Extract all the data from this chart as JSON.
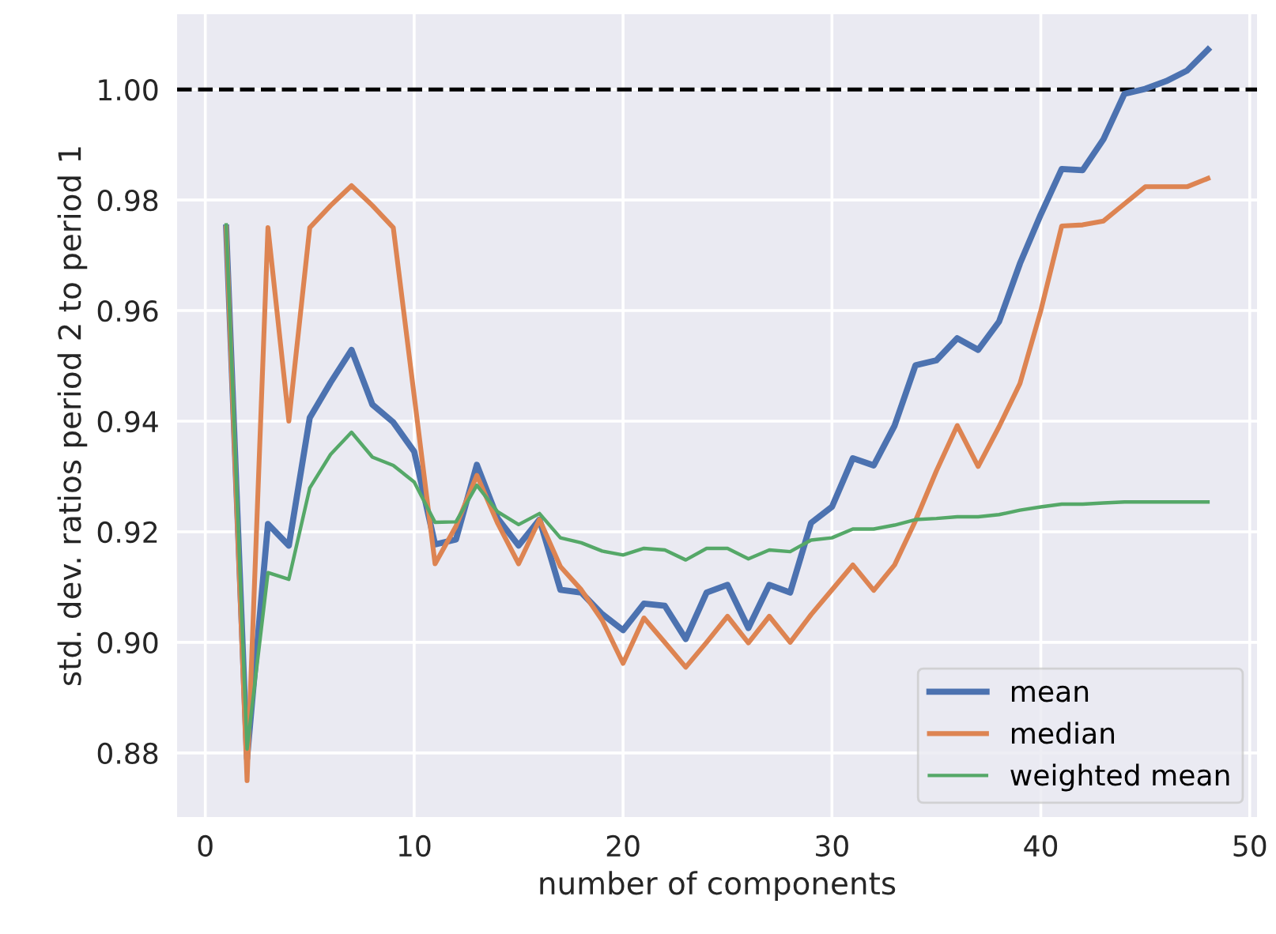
{
  "chart_data": {
    "type": "line",
    "xlabel": "number of components",
    "ylabel": "std. dev. ratios period 2 to period 1",
    "x": [
      1,
      2,
      3,
      4,
      5,
      6,
      7,
      8,
      9,
      10,
      11,
      12,
      13,
      14,
      15,
      16,
      17,
      18,
      19,
      20,
      21,
      22,
      23,
      24,
      25,
      26,
      27,
      28,
      29,
      30,
      31,
      32,
      33,
      34,
      35,
      36,
      37,
      38,
      39,
      40,
      41,
      42,
      43,
      44,
      45,
      46,
      47,
      48
    ],
    "series": [
      {
        "name": "mean",
        "color": "#4c72b0",
        "values": [
          0.975,
          0.879,
          0.9214,
          0.9175,
          0.9406,
          0.947,
          0.9529,
          0.943,
          0.9398,
          0.9345,
          0.9177,
          0.9186,
          0.9321,
          0.9224,
          0.9175,
          0.9222,
          0.9095,
          0.909,
          0.9051,
          0.9022,
          0.907,
          0.9066,
          0.9006,
          0.909,
          0.9104,
          0.9026,
          0.9104,
          0.909,
          0.9216,
          0.9245,
          0.9333,
          0.932,
          0.9392,
          0.9501,
          0.951,
          0.955,
          0.9529,
          0.958,
          0.9685,
          0.9774,
          0.9856,
          0.9854,
          0.991,
          0.9992,
          1.0001,
          1.0015,
          1.0034,
          1.0072
        ]
      },
      {
        "name": "median",
        "color": "#dd8452",
        "values": [
          0.975,
          0.875,
          0.975,
          0.94,
          0.975,
          0.979,
          0.9826,
          0.979,
          0.975,
          0.9446,
          0.9142,
          0.921,
          0.9302,
          0.9215,
          0.9142,
          0.9222,
          0.9137,
          0.9095,
          0.904,
          0.8962,
          0.9044,
          0.9,
          0.8955,
          0.9,
          0.9047,
          0.8999,
          0.9047,
          0.9,
          0.905,
          0.9095,
          0.914,
          0.9094,
          0.914,
          0.922,
          0.931,
          0.9392,
          0.9318,
          0.939,
          0.9468,
          0.96,
          0.9753,
          0.9755,
          0.9762,
          0.9793,
          0.9824,
          0.9824,
          0.9824,
          0.9839
        ]
      },
      {
        "name": "weighted mean",
        "color": "#55a868",
        "values": [
          0.9755,
          0.8807,
          0.9126,
          0.9114,
          0.9279,
          0.934,
          0.938,
          0.9335,
          0.932,
          0.929,
          0.9217,
          0.9218,
          0.9284,
          0.9236,
          0.9213,
          0.9233,
          0.9189,
          0.918,
          0.9165,
          0.9158,
          0.917,
          0.9167,
          0.9149,
          0.917,
          0.917,
          0.9151,
          0.9167,
          0.9164,
          0.9185,
          0.9189,
          0.9205,
          0.9205,
          0.9212,
          0.9222,
          0.9224,
          0.9227,
          0.9227,
          0.9231,
          0.9239,
          0.9245,
          0.925,
          0.925,
          0.9252,
          0.9254,
          0.9254,
          0.9254,
          0.9254,
          0.9254
        ]
      }
    ],
    "xlim": [
      -1.35,
      50.35
    ],
    "xticks": [
      0,
      10,
      20,
      30,
      40,
      50
    ],
    "ylim": [
      0.8684,
      1.0136
    ],
    "yticks": [
      {
        "value": 0.88,
        "label": "0.88"
      },
      {
        "value": 0.9,
        "label": "0.90"
      },
      {
        "value": 0.92,
        "label": "0.92"
      },
      {
        "value": 0.94,
        "label": "0.94"
      },
      {
        "value": 0.96,
        "label": "0.96"
      },
      {
        "value": 0.98,
        "label": "0.98"
      },
      {
        "value": 1.0,
        "label": "1.00"
      }
    ],
    "ref_lines": [
      {
        "axis": "y",
        "value": 1.0,
        "color": "#000000",
        "line_style": "dashed"
      }
    ],
    "grid": true,
    "legend": "lower right",
    "line_style": "solid",
    "marker": "none"
  }
}
